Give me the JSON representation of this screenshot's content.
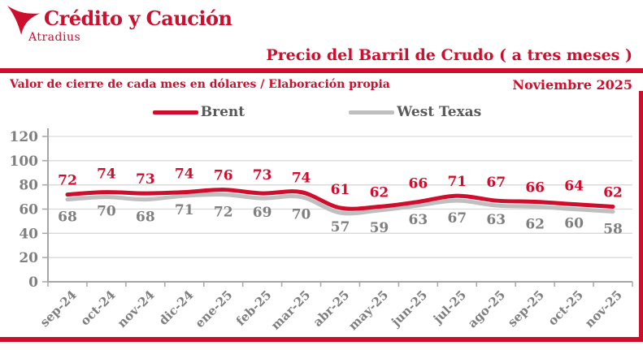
{
  "brand": {
    "name": "Crédito y Caución",
    "subname": "Atradius"
  },
  "header": {
    "title": "Precio del Barril de Crudo ( a tres meses )"
  },
  "subtitle": {
    "left": "Valor de cierre de cada mes en dólares / Elaboración propia",
    "right": "Noviembre  2025"
  },
  "legend": [
    {
      "name": "Brent",
      "color": "#CE0E2D"
    },
    {
      "name": "West Texas",
      "color": "#BFBFBF"
    }
  ],
  "colors": {
    "brand_red": "#CE0E2D",
    "gray_line": "#BFBFBF",
    "label_gray": "#7F7F7F",
    "legend_text": "#595959",
    "gridline": "#D9D9D9",
    "axis": "#A6A6A6"
  },
  "chart_data": {
    "type": "line",
    "title": "Precio del Barril de Crudo ( a tres meses )",
    "xlabel": "",
    "ylabel": "",
    "categories": [
      "sep-24",
      "oct-24",
      "nov-24",
      "dic-24",
      "ene-25",
      "feb-25",
      "mar-25",
      "abr-25",
      "may-25",
      "jun-25",
      "jul-25",
      "ago-25",
      "sep-25",
      "oct-25",
      "nov-25"
    ],
    "series": [
      {
        "name": "Brent",
        "color": "#CE0E2D",
        "values": [
          72,
          74,
          73,
          74,
          76,
          73,
          74,
          61,
          62,
          66,
          71,
          67,
          66,
          64,
          62
        ]
      },
      {
        "name": "West Texas",
        "color": "#BFBFBF",
        "values": [
          68,
          70,
          68,
          71,
          72,
          69,
          70,
          57,
          59,
          63,
          67,
          63,
          62,
          60,
          58
        ]
      }
    ],
    "ylim": [
      0,
      120
    ],
    "ytick_step": 20,
    "grid": true,
    "legend_position": "top",
    "data_labels": true
  }
}
